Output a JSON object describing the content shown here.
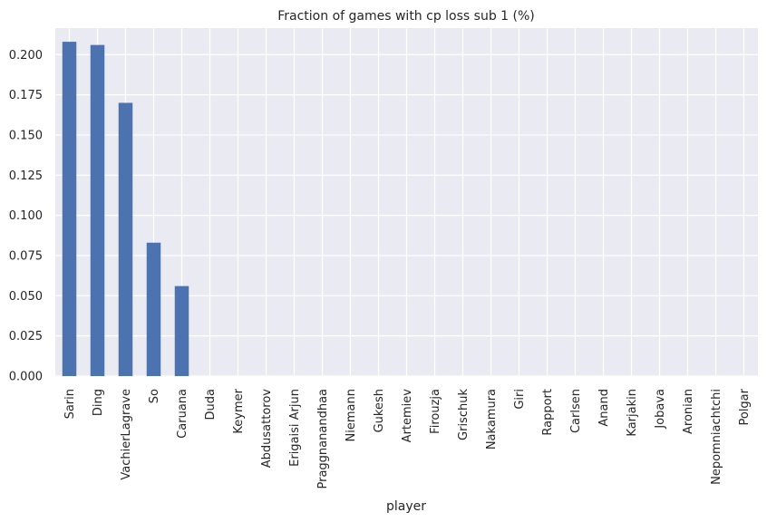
{
  "chart_data": {
    "type": "bar",
    "title": "Fraction of games with cp loss sub 1 (%)",
    "xlabel": "player",
    "ylabel": "",
    "categories": [
      "Sarin",
      "Ding",
      "VachierLagrave",
      "So",
      "Caruana",
      "Duda",
      "Keymer",
      "Abdusattorov",
      "Erigaisi Arjun",
      "Praggnanandhaa",
      "Niemann",
      "Gukesh",
      "Artemiev",
      "Firouzja",
      "Grischuk",
      "Nakamura",
      "Giri",
      "Rapport",
      "Carlsen",
      "Anand",
      "Karjakin",
      "Jobava",
      "Aronian",
      "Nepomniachtchi",
      "Polgar"
    ],
    "values": [
      0.208,
      0.206,
      0.17,
      0.083,
      0.056,
      0,
      0,
      0,
      0,
      0,
      0,
      0,
      0,
      0,
      0,
      0,
      0,
      0,
      0,
      0,
      0,
      0,
      0,
      0,
      0
    ],
    "ylim": [
      0,
      0.2165
    ],
    "yticks": [
      "0.000",
      "0.025",
      "0.050",
      "0.075",
      "0.100",
      "0.125",
      "0.150",
      "0.175",
      "0.200"
    ],
    "grid": true,
    "legend": "none",
    "colors": {
      "bar": "#4c72b0",
      "background": "#eaeaf2",
      "grid": "#ffffff",
      "text": "#262626"
    }
  }
}
